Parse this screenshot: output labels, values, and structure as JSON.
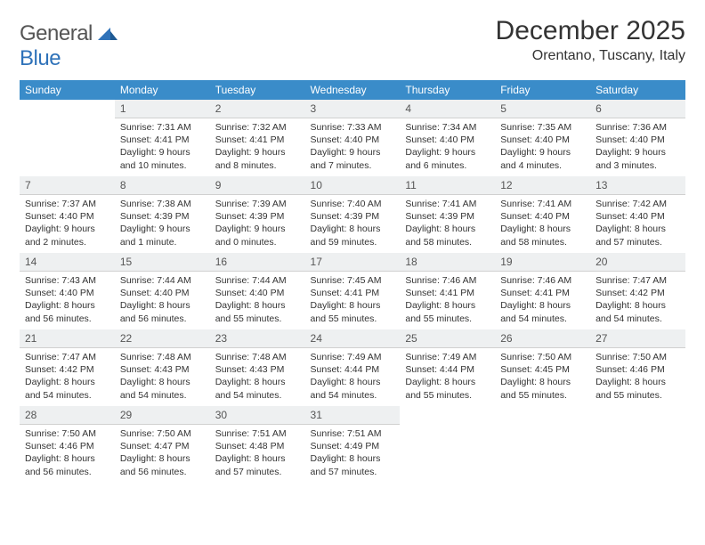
{
  "logo": {
    "text_general": "General",
    "text_blue": "Blue"
  },
  "title": "December 2025",
  "location": "Orentano, Tuscany, Italy",
  "colors": {
    "header_bg": "#3a8cc9",
    "header_fg": "#ffffff",
    "daynum_bg": "#eef0f1",
    "week_divider": "#2f72b9",
    "text": "#333333",
    "logo_blue": "#2f72b9"
  },
  "day_headers": [
    "Sunday",
    "Monday",
    "Tuesday",
    "Wednesday",
    "Thursday",
    "Friday",
    "Saturday"
  ],
  "weeks": [
    [
      {
        "n": "",
        "sr": "",
        "ss": "",
        "dl": ""
      },
      {
        "n": "1",
        "sr": "Sunrise: 7:31 AM",
        "ss": "Sunset: 4:41 PM",
        "dl": "Daylight: 9 hours and 10 minutes."
      },
      {
        "n": "2",
        "sr": "Sunrise: 7:32 AM",
        "ss": "Sunset: 4:41 PM",
        "dl": "Daylight: 9 hours and 8 minutes."
      },
      {
        "n": "3",
        "sr": "Sunrise: 7:33 AM",
        "ss": "Sunset: 4:40 PM",
        "dl": "Daylight: 9 hours and 7 minutes."
      },
      {
        "n": "4",
        "sr": "Sunrise: 7:34 AM",
        "ss": "Sunset: 4:40 PM",
        "dl": "Daylight: 9 hours and 6 minutes."
      },
      {
        "n": "5",
        "sr": "Sunrise: 7:35 AM",
        "ss": "Sunset: 4:40 PM",
        "dl": "Daylight: 9 hours and 4 minutes."
      },
      {
        "n": "6",
        "sr": "Sunrise: 7:36 AM",
        "ss": "Sunset: 4:40 PM",
        "dl": "Daylight: 9 hours and 3 minutes."
      }
    ],
    [
      {
        "n": "7",
        "sr": "Sunrise: 7:37 AM",
        "ss": "Sunset: 4:40 PM",
        "dl": "Daylight: 9 hours and 2 minutes."
      },
      {
        "n": "8",
        "sr": "Sunrise: 7:38 AM",
        "ss": "Sunset: 4:39 PM",
        "dl": "Daylight: 9 hours and 1 minute."
      },
      {
        "n": "9",
        "sr": "Sunrise: 7:39 AM",
        "ss": "Sunset: 4:39 PM",
        "dl": "Daylight: 9 hours and 0 minutes."
      },
      {
        "n": "10",
        "sr": "Sunrise: 7:40 AM",
        "ss": "Sunset: 4:39 PM",
        "dl": "Daylight: 8 hours and 59 minutes."
      },
      {
        "n": "11",
        "sr": "Sunrise: 7:41 AM",
        "ss": "Sunset: 4:39 PM",
        "dl": "Daylight: 8 hours and 58 minutes."
      },
      {
        "n": "12",
        "sr": "Sunrise: 7:41 AM",
        "ss": "Sunset: 4:40 PM",
        "dl": "Daylight: 8 hours and 58 minutes."
      },
      {
        "n": "13",
        "sr": "Sunrise: 7:42 AM",
        "ss": "Sunset: 4:40 PM",
        "dl": "Daylight: 8 hours and 57 minutes."
      }
    ],
    [
      {
        "n": "14",
        "sr": "Sunrise: 7:43 AM",
        "ss": "Sunset: 4:40 PM",
        "dl": "Daylight: 8 hours and 56 minutes."
      },
      {
        "n": "15",
        "sr": "Sunrise: 7:44 AM",
        "ss": "Sunset: 4:40 PM",
        "dl": "Daylight: 8 hours and 56 minutes."
      },
      {
        "n": "16",
        "sr": "Sunrise: 7:44 AM",
        "ss": "Sunset: 4:40 PM",
        "dl": "Daylight: 8 hours and 55 minutes."
      },
      {
        "n": "17",
        "sr": "Sunrise: 7:45 AM",
        "ss": "Sunset: 4:41 PM",
        "dl": "Daylight: 8 hours and 55 minutes."
      },
      {
        "n": "18",
        "sr": "Sunrise: 7:46 AM",
        "ss": "Sunset: 4:41 PM",
        "dl": "Daylight: 8 hours and 55 minutes."
      },
      {
        "n": "19",
        "sr": "Sunrise: 7:46 AM",
        "ss": "Sunset: 4:41 PM",
        "dl": "Daylight: 8 hours and 54 minutes."
      },
      {
        "n": "20",
        "sr": "Sunrise: 7:47 AM",
        "ss": "Sunset: 4:42 PM",
        "dl": "Daylight: 8 hours and 54 minutes."
      }
    ],
    [
      {
        "n": "21",
        "sr": "Sunrise: 7:47 AM",
        "ss": "Sunset: 4:42 PM",
        "dl": "Daylight: 8 hours and 54 minutes."
      },
      {
        "n": "22",
        "sr": "Sunrise: 7:48 AM",
        "ss": "Sunset: 4:43 PM",
        "dl": "Daylight: 8 hours and 54 minutes."
      },
      {
        "n": "23",
        "sr": "Sunrise: 7:48 AM",
        "ss": "Sunset: 4:43 PM",
        "dl": "Daylight: 8 hours and 54 minutes."
      },
      {
        "n": "24",
        "sr": "Sunrise: 7:49 AM",
        "ss": "Sunset: 4:44 PM",
        "dl": "Daylight: 8 hours and 54 minutes."
      },
      {
        "n": "25",
        "sr": "Sunrise: 7:49 AM",
        "ss": "Sunset: 4:44 PM",
        "dl": "Daylight: 8 hours and 55 minutes."
      },
      {
        "n": "26",
        "sr": "Sunrise: 7:50 AM",
        "ss": "Sunset: 4:45 PM",
        "dl": "Daylight: 8 hours and 55 minutes."
      },
      {
        "n": "27",
        "sr": "Sunrise: 7:50 AM",
        "ss": "Sunset: 4:46 PM",
        "dl": "Daylight: 8 hours and 55 minutes."
      }
    ],
    [
      {
        "n": "28",
        "sr": "Sunrise: 7:50 AM",
        "ss": "Sunset: 4:46 PM",
        "dl": "Daylight: 8 hours and 56 minutes."
      },
      {
        "n": "29",
        "sr": "Sunrise: 7:50 AM",
        "ss": "Sunset: 4:47 PM",
        "dl": "Daylight: 8 hours and 56 minutes."
      },
      {
        "n": "30",
        "sr": "Sunrise: 7:51 AM",
        "ss": "Sunset: 4:48 PM",
        "dl": "Daylight: 8 hours and 57 minutes."
      },
      {
        "n": "31",
        "sr": "Sunrise: 7:51 AM",
        "ss": "Sunset: 4:49 PM",
        "dl": "Daylight: 8 hours and 57 minutes."
      },
      {
        "n": "",
        "sr": "",
        "ss": "",
        "dl": ""
      },
      {
        "n": "",
        "sr": "",
        "ss": "",
        "dl": ""
      },
      {
        "n": "",
        "sr": "",
        "ss": "",
        "dl": ""
      }
    ]
  ]
}
